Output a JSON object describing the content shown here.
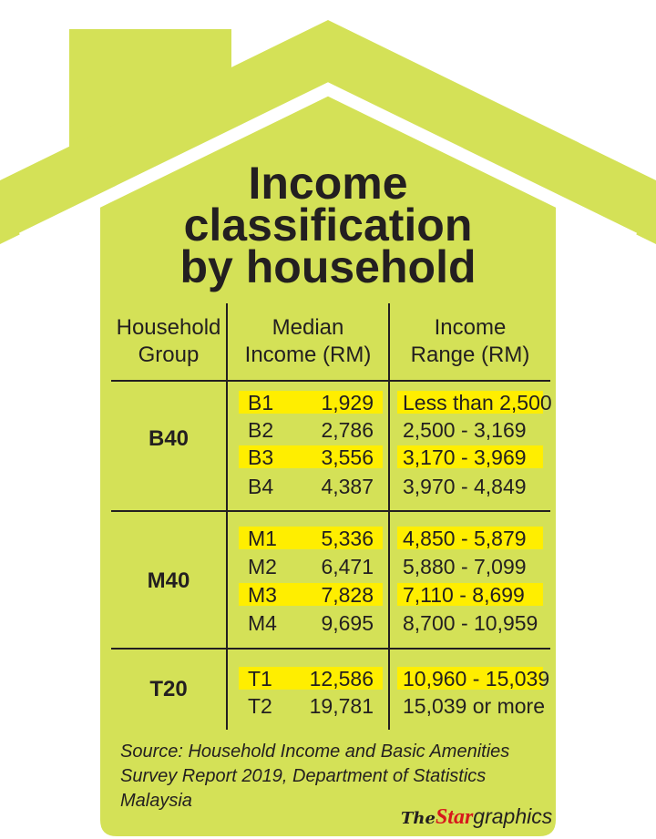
{
  "title_lines": [
    "Income",
    "classification",
    "by household"
  ],
  "headers": {
    "group": [
      "Household",
      "Group"
    ],
    "median": [
      "Median",
      "Income (RM)"
    ],
    "range": [
      "Income",
      "Range (RM)"
    ]
  },
  "groups": [
    {
      "name": "B40",
      "rows": [
        {
          "code": "B1",
          "median": "1,929",
          "range": "Less than 2,500",
          "highlight": true
        },
        {
          "code": "B2",
          "median": "2,786",
          "range": "2,500 - 3,169",
          "highlight": false
        },
        {
          "code": "B3",
          "median": "3,556",
          "range": "3,170 - 3,969",
          "highlight": true
        },
        {
          "code": "B4",
          "median": "4,387",
          "range": "3,970 - 4,849",
          "highlight": false
        }
      ]
    },
    {
      "name": "M40",
      "rows": [
        {
          "code": "M1",
          "median": "5,336",
          "range": "4,850 - 5,879",
          "highlight": true
        },
        {
          "code": "M2",
          "median": "6,471",
          "range": "5,880 - 7,099",
          "highlight": false
        },
        {
          "code": "M3",
          "median": "7,828",
          "range": "7,110 - 8,699",
          "highlight": true
        },
        {
          "code": "M4",
          "median": "9,695",
          "range": "8,700 - 10,959",
          "highlight": false
        }
      ]
    },
    {
      "name": "T20",
      "rows": [
        {
          "code": "T1",
          "median": "12,586",
          "range": "10,960 - 15,039",
          "highlight": true
        },
        {
          "code": "T2",
          "median": "19,781",
          "range": "15,039 or more",
          "highlight": false
        }
      ]
    }
  ],
  "source": [
    "Source: Household Income and Basic Amenities",
    "Survey Report 2019, Department of Statistics",
    "Malaysia"
  ],
  "logo": {
    "the": "The",
    "star": "Star",
    "graphics": "graphics"
  },
  "colors": {
    "house": "#d4e157",
    "highlight": "#ffee00",
    "text": "#231f20"
  }
}
